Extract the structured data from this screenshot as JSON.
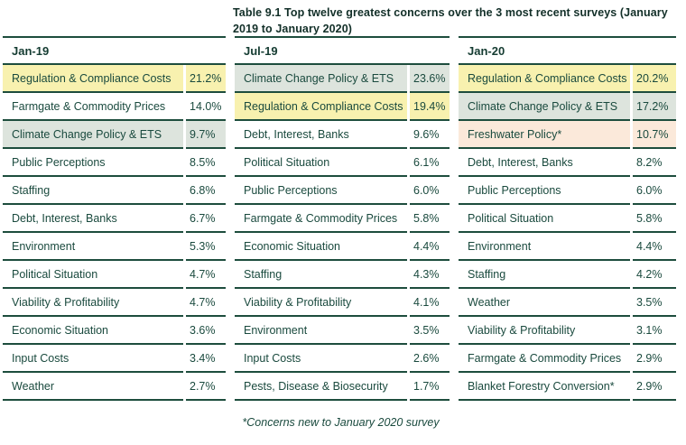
{
  "title": "Table 9.1 Top twelve greatest concerns over the 3 most recent surveys (January 2019 to January 2020)",
  "footnote": "*Concerns new to January 2020 survey",
  "colors": {
    "text": "#1a4a3e",
    "title_text": "#122f28",
    "border": "#1d4d3d",
    "highlight_yellow": "#f8f1af",
    "highlight_green": "#dde4dd",
    "highlight_peach": "#fbe9da"
  },
  "chart_data": {
    "type": "table",
    "title": "Table 9.1 Top twelve greatest concerns over the 3 most recent surveys (January 2019 to January 2020)",
    "footnote": "*Concerns new to January 2020 survey",
    "columns": [
      {
        "header": "Jan-19",
        "rows": [
          {
            "label": "Regulation & Compliance Costs",
            "value": "21.2%",
            "highlight": "yellow"
          },
          {
            "label": "Farmgate & Commodity Prices",
            "value": "14.0%",
            "highlight": ""
          },
          {
            "label": "Climate Change Policy & ETS",
            "value": "9.7%",
            "highlight": "green"
          },
          {
            "label": "Public Perceptions",
            "value": "8.5%",
            "highlight": ""
          },
          {
            "label": "Staffing",
            "value": "6.8%",
            "highlight": ""
          },
          {
            "label": "Debt, Interest, Banks",
            "value": "6.7%",
            "highlight": ""
          },
          {
            "label": "Environment",
            "value": "5.3%",
            "highlight": ""
          },
          {
            "label": "Political Situation",
            "value": "4.7%",
            "highlight": ""
          },
          {
            "label": "Viability & Profitability",
            "value": "4.7%",
            "highlight": ""
          },
          {
            "label": "Economic Situation",
            "value": "3.6%",
            "highlight": ""
          },
          {
            "label": "Input Costs",
            "value": "3.4%",
            "highlight": ""
          },
          {
            "label": "Weather",
            "value": "2.7%",
            "highlight": ""
          }
        ]
      },
      {
        "header": "Jul-19",
        "rows": [
          {
            "label": "Climate Change Policy & ETS",
            "value": "23.6%",
            "highlight": "green"
          },
          {
            "label": "Regulation & Compliance Costs",
            "value": "19.4%",
            "highlight": "yellow"
          },
          {
            "label": "Debt, Interest, Banks",
            "value": "9.6%",
            "highlight": ""
          },
          {
            "label": "Political Situation",
            "value": "6.1%",
            "highlight": ""
          },
          {
            "label": "Public Perceptions",
            "value": "6.0%",
            "highlight": ""
          },
          {
            "label": "Farmgate & Commodity Prices",
            "value": "5.8%",
            "highlight": ""
          },
          {
            "label": "Economic Situation",
            "value": "4.4%",
            "highlight": ""
          },
          {
            "label": "Staffing",
            "value": "4.3%",
            "highlight": ""
          },
          {
            "label": "Viability & Profitability",
            "value": "4.1%",
            "highlight": ""
          },
          {
            "label": "Environment",
            "value": "3.5%",
            "highlight": ""
          },
          {
            "label": "Input Costs",
            "value": "2.6%",
            "highlight": ""
          },
          {
            "label": "Pests, Disease & Biosecurity",
            "value": "1.7%",
            "highlight": ""
          }
        ]
      },
      {
        "header": "Jan-20",
        "rows": [
          {
            "label": "Regulation & Compliance Costs",
            "value": "20.2%",
            "highlight": "yellow"
          },
          {
            "label": "Climate Change Policy & ETS",
            "value": "17.2%",
            "highlight": "green"
          },
          {
            "label": "Freshwater Policy*",
            "value": "10.7%",
            "highlight": "peach"
          },
          {
            "label": "Debt, Interest, Banks",
            "value": "8.2%",
            "highlight": ""
          },
          {
            "label": "Public Perceptions",
            "value": "6.0%",
            "highlight": ""
          },
          {
            "label": "Political Situation",
            "value": "5.8%",
            "highlight": ""
          },
          {
            "label": "Environment",
            "value": "4.4%",
            "highlight": ""
          },
          {
            "label": "Staffing",
            "value": "4.2%",
            "highlight": ""
          },
          {
            "label": "Weather",
            "value": "3.5%",
            "highlight": ""
          },
          {
            "label": "Viability & Profitability",
            "value": "3.1%",
            "highlight": ""
          },
          {
            "label": "Farmgate & Commodity Prices",
            "value": "2.9%",
            "highlight": ""
          },
          {
            "label": "Blanket Forestry Conversion*",
            "value": "2.9%",
            "highlight": ""
          }
        ]
      }
    ]
  }
}
